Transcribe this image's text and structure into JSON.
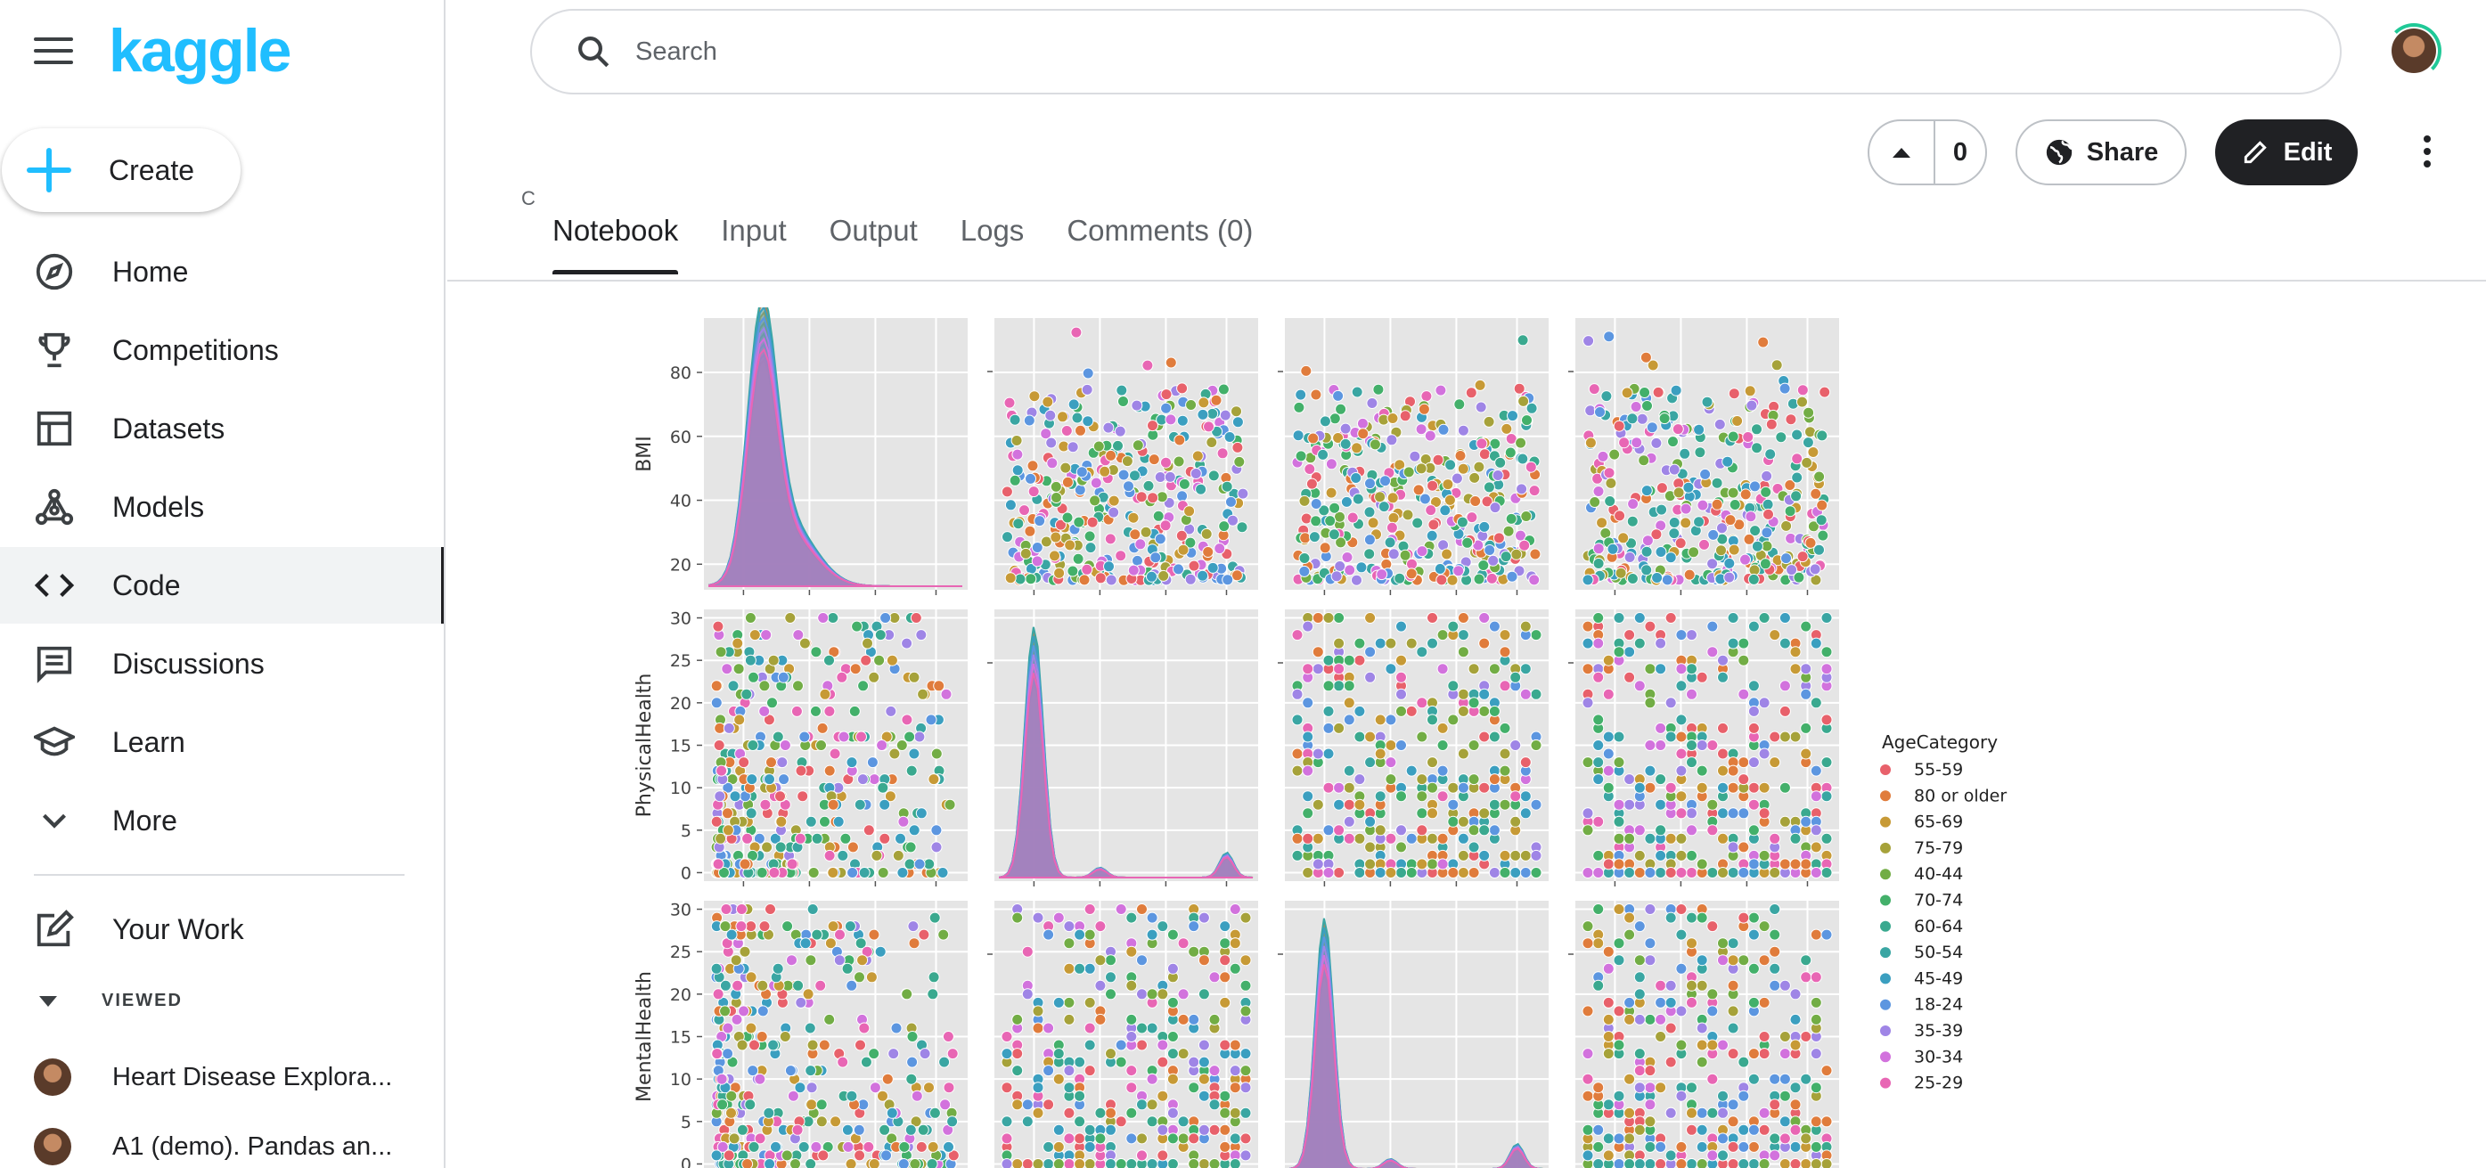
{
  "sidebar": {
    "logo": "kaggle",
    "create_label": "Create",
    "items": [
      {
        "label": "Home",
        "icon": "compass-icon"
      },
      {
        "label": "Competitions",
        "icon": "trophy-icon"
      },
      {
        "label": "Datasets",
        "icon": "table-icon"
      },
      {
        "label": "Models",
        "icon": "models-icon"
      },
      {
        "label": "Code",
        "icon": "code-icon",
        "active": true
      },
      {
        "label": "Discussions",
        "icon": "comment-icon"
      },
      {
        "label": "Learn",
        "icon": "school-icon"
      },
      {
        "label": "More",
        "icon": "chevron-down-icon"
      }
    ],
    "your_work": "Your Work",
    "viewed_header": "VIEWED",
    "viewed": [
      {
        "label": "Heart Disease Explora..."
      },
      {
        "label": "A1 (demo). Pandas an..."
      }
    ]
  },
  "search": {
    "placeholder": "Search"
  },
  "actions": {
    "vote_count": "0",
    "share_label": "Share",
    "edit_label": "Edit"
  },
  "stray_char": "C",
  "tabs": [
    {
      "label": "Notebook",
      "active": true
    },
    {
      "label": "Input"
    },
    {
      "label": "Output"
    },
    {
      "label": "Logs"
    },
    {
      "label": "Comments (0)"
    }
  ],
  "colors": {
    "kaggle_blue": "#20beff",
    "panel_bg": "#e5e5e5"
  },
  "chart_data": {
    "type": "scatter",
    "variables": [
      "BMI",
      "PhysicalHealth",
      "MentalHealth"
    ],
    "yticks": {
      "BMI": [
        20,
        40,
        60,
        80
      ],
      "PhysicalHealth": [
        0,
        5,
        10,
        15,
        20,
        25,
        30
      ],
      "MentalHealth": [
        0,
        5,
        10,
        15,
        20,
        25,
        30
      ]
    },
    "ylim": {
      "BMI": [
        12,
        97
      ],
      "PhysicalHealth": [
        -1,
        31
      ],
      "MentalHealth": [
        -1,
        31
      ]
    },
    "legend_title": "AgeCategory",
    "legend_placement": "right",
    "series": [
      {
        "name": "55-59",
        "color": "#e8616b"
      },
      {
        "name": "80 or older",
        "color": "#e07c3c"
      },
      {
        "name": "65-69",
        "color": "#c79a36"
      },
      {
        "name": "75-79",
        "color": "#a6a23a"
      },
      {
        "name": "40-44",
        "color": "#72ad45"
      },
      {
        "name": "70-74",
        "color": "#43b06a"
      },
      {
        "name": "60-64",
        "color": "#3aa98f"
      },
      {
        "name": "50-54",
        "color": "#3aa6a3"
      },
      {
        "name": "45-49",
        "color": "#3b9fc0"
      },
      {
        "name": "18-24",
        "color": "#5c96e0"
      },
      {
        "name": "35-39",
        "color": "#9f85e6"
      },
      {
        "name": "30-34",
        "color": "#d272dd"
      },
      {
        "name": "25-29",
        "color": "#e866b4"
      }
    ]
  }
}
